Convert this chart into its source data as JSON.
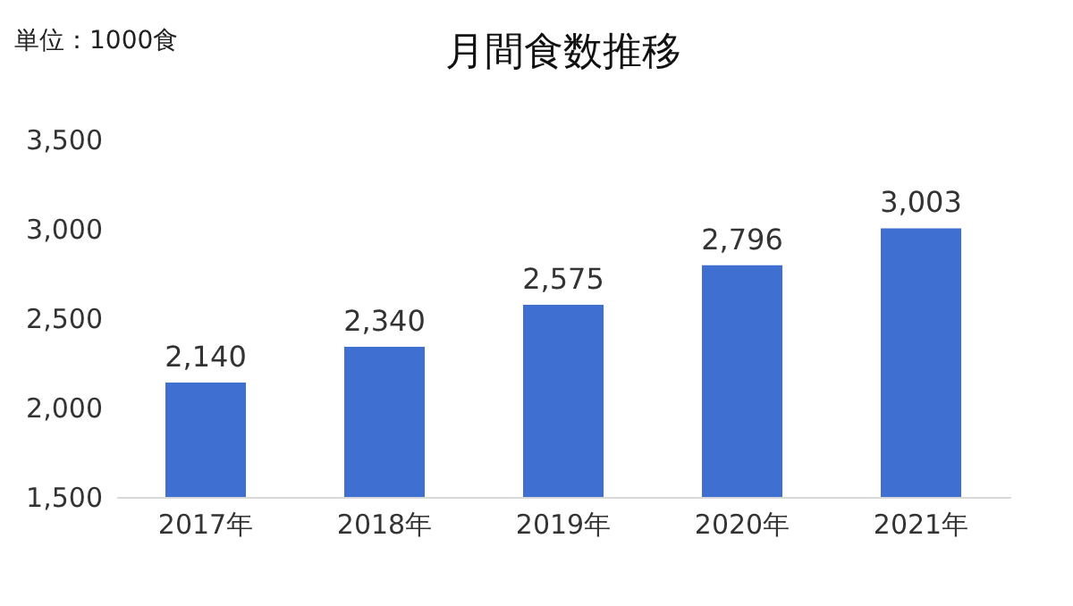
{
  "chart_data": {
    "type": "bar",
    "title": "月間食数推移",
    "annotations": [
      "単位：1000食"
    ],
    "categories": [
      "2017年",
      "2018年",
      "2019年",
      "2020年",
      "2021年"
    ],
    "values": [
      2140,
      2340,
      2575,
      2796,
      3003
    ],
    "value_labels": [
      "2,140",
      "2,340",
      "2,575",
      "2,796",
      "3,003"
    ],
    "color": "#3f6fd0",
    "ylim": [
      1500,
      3500
    ],
    "yticks": [
      {
        "value": 1500,
        "label": "1,500"
      },
      {
        "value": 2000,
        "label": "2,000"
      },
      {
        "value": 2500,
        "label": "2,500"
      },
      {
        "value": 3000,
        "label": "3,000"
      },
      {
        "value": 3500,
        "label": "3,500"
      }
    ],
    "grid": false
  }
}
